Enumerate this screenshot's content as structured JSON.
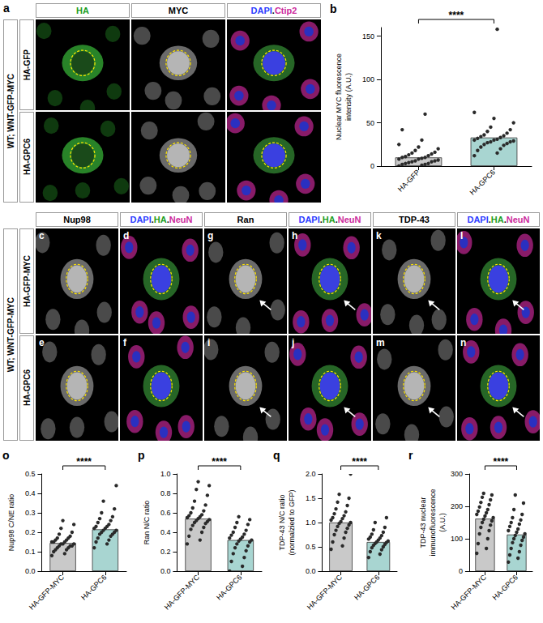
{
  "image_panels": [
    {
      "letter": "a",
      "row_group": "WT; WNT-GFP-MYC",
      "rows": [
        "HA-GFP",
        "HA-GPC6"
      ],
      "columns": [
        [
          {
            "text": "HA",
            "color": "#1e9e1e"
          }
        ],
        [
          {
            "text": "MYC",
            "color": "#000000"
          }
        ],
        [
          {
            "text": "DAPI",
            "color": "#2b3cff"
          },
          {
            "text": ".",
            "color": "#000000"
          },
          {
            "text": "Ctip2",
            "color": "#cc2b9c"
          }
        ]
      ]
    },
    {
      "row_group": "WT; WNT-GFP-MYC",
      "rows": [
        "HA-GFP-MYC",
        "HA-GPC6"
      ],
      "columns": [
        [
          {
            "text": "Nup98",
            "color": "#000000"
          }
        ],
        [
          {
            "text": "DAPI",
            "color": "#2b3cff"
          },
          {
            "text": ".",
            "color": "#000000"
          },
          {
            "text": "HA",
            "color": "#1e9e1e"
          },
          {
            "text": ".",
            "color": "#000000"
          },
          {
            "text": "NeuN",
            "color": "#cc2b9c"
          }
        ],
        [
          {
            "text": "Ran",
            "color": "#000000"
          }
        ],
        [
          {
            "text": "DAPI",
            "color": "#2b3cff"
          },
          {
            "text": ".",
            "color": "#000000"
          },
          {
            "text": "HA",
            "color": "#1e9e1e"
          },
          {
            "text": ".",
            "color": "#000000"
          },
          {
            "text": "NeuN",
            "color": "#cc2b9c"
          }
        ],
        [
          {
            "text": "TDP-43",
            "color": "#000000"
          }
        ],
        [
          {
            "text": "DAPI",
            "color": "#2b3cff"
          },
          {
            "text": ".",
            "color": "#000000"
          },
          {
            "text": "HA",
            "color": "#1e9e1e"
          },
          {
            "text": ".",
            "color": "#000000"
          },
          {
            "text": "NeuN",
            "color": "#cc2b9c"
          }
        ]
      ],
      "cell_letters": [
        [
          "c",
          "d",
          "g",
          "h",
          "k",
          "l"
        ],
        [
          "e",
          "f",
          "i",
          "j",
          "m",
          "n"
        ]
      ]
    }
  ],
  "chart_data": [
    {
      "type": "bar",
      "panel_label": "b",
      "categories": [
        "HA-GFP",
        "HA-GPC6"
      ],
      "values": [
        10,
        33
      ],
      "colors": [
        "#c9c9c9",
        "#a8d5d1"
      ],
      "points": [
        [
          0,
          1,
          2,
          2,
          3,
          3,
          4,
          5,
          5,
          6,
          6,
          7,
          8,
          8,
          9,
          10,
          10,
          11,
          12,
          13,
          14,
          15,
          16,
          18,
          20,
          22,
          25,
          30,
          42,
          60
        ],
        [
          12,
          15,
          18,
          20,
          22,
          24,
          25,
          26,
          27,
          28,
          28,
          29,
          30,
          30,
          31,
          32,
          33,
          34,
          35,
          36,
          38,
          40,
          42,
          45,
          50,
          55,
          62,
          158
        ]
      ],
      "y_label": "Nuclear MYC fluorescence intensity (A.U.)",
      "ylim": [
        0,
        160
      ],
      "yticks": [
        0,
        50,
        100,
        150
      ],
      "annotation": "****",
      "grid": false
    },
    {
      "type": "bar",
      "panel_label": "o",
      "categories": [
        "HA-GFP-MYC",
        "HA-GPC6"
      ],
      "values": [
        0.145,
        0.215
      ],
      "colors": [
        "#c9c9c9",
        "#a8d5d1"
      ],
      "points": [
        [
          0.08,
          0.09,
          0.1,
          0.11,
          0.11,
          0.12,
          0.12,
          0.13,
          0.13,
          0.13,
          0.14,
          0.14,
          0.14,
          0.15,
          0.15,
          0.15,
          0.16,
          0.16,
          0.17,
          0.17,
          0.18,
          0.19,
          0.2,
          0.22,
          0.24,
          0.26
        ],
        [
          0.12,
          0.14,
          0.15,
          0.16,
          0.17,
          0.18,
          0.19,
          0.19,
          0.2,
          0.2,
          0.21,
          0.21,
          0.22,
          0.22,
          0.23,
          0.23,
          0.24,
          0.25,
          0.26,
          0.27,
          0.28,
          0.3,
          0.32,
          0.36,
          0.44
        ]
      ],
      "y_label": "Nup98 C/NE ratio",
      "ylim": [
        0,
        0.5
      ],
      "yticks": [
        {
          "value": 0,
          "label": "0.0"
        },
        0.1,
        0.2,
        0.3,
        0.4,
        0.5
      ],
      "annotation": "****",
      "grid": false
    },
    {
      "type": "bar",
      "panel_label": "p",
      "categories": [
        "HA-GFP-MYC",
        "HA-GPC6"
      ],
      "values": [
        0.54,
        0.32
      ],
      "colors": [
        "#c9c9c9",
        "#a8d5d1"
      ],
      "points": [
        [
          0.28,
          0.32,
          0.36,
          0.4,
          0.43,
          0.45,
          0.47,
          0.49,
          0.5,
          0.51,
          0.52,
          0.53,
          0.54,
          0.55,
          0.56,
          0.57,
          0.58,
          0.6,
          0.62,
          0.65,
          0.68,
          0.72,
          0.78,
          0.84,
          0.88,
          0.92
        ],
        [
          0.0,
          0.05,
          0.1,
          0.14,
          0.18,
          0.21,
          0.24,
          0.26,
          0.28,
          0.3,
          0.31,
          0.32,
          0.33,
          0.34,
          0.35,
          0.37,
          0.38,
          0.4,
          0.42,
          0.45,
          0.48,
          0.5,
          0.53,
          0.56
        ]
      ],
      "y_label": "Ran N/C ratio",
      "ylim": [
        0,
        1
      ],
      "yticks": [
        {
          "value": 0,
          "label": "0.0"
        },
        0.2,
        0.4,
        0.6,
        0.8,
        {
          "value": 1,
          "label": "1.0"
        }
      ],
      "annotation": "****",
      "grid": false
    },
    {
      "type": "bar",
      "panel_label": "q",
      "categories": [
        "HA-GFP-MYC",
        "HA-GPC6"
      ],
      "values": [
        1.0,
        0.6
      ],
      "colors": [
        "#c9c9c9",
        "#a8d5d1"
      ],
      "points": [
        [
          0.45,
          0.52,
          0.6,
          0.68,
          0.75,
          0.8,
          0.84,
          0.88,
          0.92,
          0.95,
          0.98,
          1.0,
          1.02,
          1.05,
          1.08,
          1.1,
          1.14,
          1.18,
          1.22,
          1.28,
          1.35,
          1.42,
          1.5,
          1.58,
          2.0
        ],
        [
          0.28,
          0.35,
          0.4,
          0.44,
          0.48,
          0.5,
          0.53,
          0.55,
          0.57,
          0.59,
          0.6,
          0.62,
          0.64,
          0.66,
          0.68,
          0.7,
          0.73,
          0.76,
          0.8,
          0.85,
          0.9,
          1.0,
          1.1
        ]
      ],
      "y_label": "TDP-43 N/C ratio (normalzied to GFP)",
      "ylim": [
        0,
        2
      ],
      "yticks": [
        {
          "value": 0,
          "label": "0.0"
        },
        0.5,
        {
          "value": 1,
          "label": "1.0"
        },
        1.5,
        {
          "value": 2,
          "label": "2.0"
        }
      ],
      "annotation": "****",
      "grid": false
    },
    {
      "type": "bar",
      "panel_label": "r",
      "categories": [
        "HA-GFP-MYC",
        "HA-GPC6"
      ],
      "values": [
        162,
        113
      ],
      "colors": [
        "#c9c9c9",
        "#a8d5d1"
      ],
      "points": [
        [
          55,
          70,
          85,
          100,
          115,
          125,
          135,
          142,
          150,
          155,
          160,
          165,
          170,
          175,
          180,
          185,
          190,
          198,
          205,
          212,
          220,
          228,
          235,
          240
        ],
        [
          28,
          40,
          50,
          60,
          70,
          80,
          88,
          95,
          100,
          105,
          110,
          115,
          120,
          125,
          130,
          138,
          145,
          150,
          158,
          165,
          175,
          190,
          210,
          235
        ]
      ],
      "y_label": "TDP-43 nuclear immunofluorescence (A.U.)",
      "ylim": [
        0,
        300
      ],
      "yticks": [
        0,
        100,
        200,
        300
      ],
      "annotation": "****",
      "grid": false
    }
  ]
}
